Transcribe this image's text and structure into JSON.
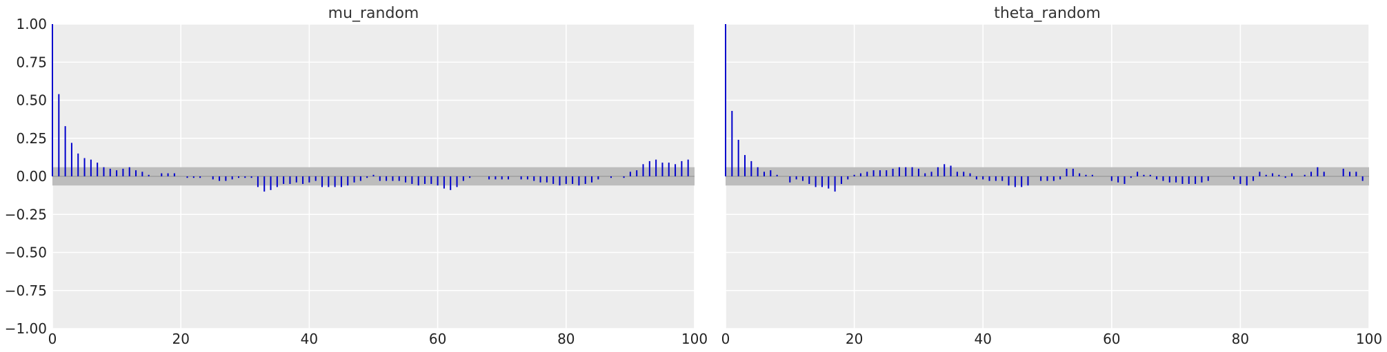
{
  "chart_data": [
    {
      "type": "bar",
      "subtype": "autocorrelation",
      "title": "mu_random",
      "xlabel": "",
      "ylabel": "",
      "xlim": [
        0,
        100
      ],
      "ylim": [
        -1.0,
        1.0
      ],
      "xticks": [
        "0",
        "20",
        "40",
        "60",
        "80",
        "100"
      ],
      "yticks": [
        "1.00",
        "0.75",
        "0.50",
        "0.25",
        "0.00",
        "−0.25",
        "−0.50",
        "−0.75",
        "−1.00"
      ],
      "grid": true,
      "confidence_band": [
        -0.06,
        0.06
      ],
      "bar_color": "#0000cc",
      "band_color": "#bdbdbd",
      "background_color": "#ededed",
      "x": [
        0,
        1,
        2,
        3,
        4,
        5,
        6,
        7,
        8,
        9,
        10,
        11,
        12,
        13,
        14,
        15,
        16,
        17,
        18,
        19,
        20,
        21,
        22,
        23,
        24,
        25,
        26,
        27,
        28,
        29,
        30,
        31,
        32,
        33,
        34,
        35,
        36,
        37,
        38,
        39,
        40,
        41,
        42,
        43,
        44,
        45,
        46,
        47,
        48,
        49,
        50,
        51,
        52,
        53,
        54,
        55,
        56,
        57,
        58,
        59,
        60,
        61,
        62,
        63,
        64,
        65,
        66,
        67,
        68,
        69,
        70,
        71,
        72,
        73,
        74,
        75,
        76,
        77,
        78,
        79,
        80,
        81,
        82,
        83,
        84,
        85,
        86,
        87,
        88,
        89,
        90,
        91,
        92,
        93,
        94,
        95,
        96,
        97,
        98,
        99
      ],
      "values": [
        1.0,
        0.54,
        0.33,
        0.22,
        0.15,
        0.12,
        0.11,
        0.09,
        0.06,
        0.05,
        0.04,
        0.05,
        0.06,
        0.04,
        0.03,
        0.01,
        0.0,
        0.02,
        0.02,
        0.02,
        0.0,
        -0.01,
        -0.01,
        -0.01,
        0.0,
        -0.02,
        -0.03,
        -0.03,
        -0.02,
        -0.01,
        -0.01,
        -0.01,
        -0.07,
        -0.1,
        -0.09,
        -0.07,
        -0.05,
        -0.05,
        -0.04,
        -0.05,
        -0.04,
        -0.03,
        -0.07,
        -0.07,
        -0.07,
        -0.07,
        -0.06,
        -0.04,
        -0.03,
        -0.01,
        0.01,
        -0.03,
        -0.03,
        -0.03,
        -0.03,
        -0.04,
        -0.05,
        -0.06,
        -0.05,
        -0.05,
        -0.06,
        -0.08,
        -0.09,
        -0.07,
        -0.03,
        -0.01,
        0.0,
        0.0,
        -0.02,
        -0.02,
        -0.02,
        -0.02,
        0.0,
        -0.02,
        -0.02,
        -0.03,
        -0.04,
        -0.04,
        -0.05,
        -0.06,
        -0.05,
        -0.05,
        -0.06,
        -0.05,
        -0.04,
        -0.02,
        0.0,
        -0.01,
        0.0,
        -0.01,
        0.03,
        0.04,
        0.08,
        0.1,
        0.11,
        0.09,
        0.09,
        0.08,
        0.1,
        0.11
      ]
    },
    {
      "type": "bar",
      "subtype": "autocorrelation",
      "title": "theta_random",
      "xlabel": "",
      "ylabel": "",
      "xlim": [
        0,
        100
      ],
      "ylim": [
        -1.0,
        1.0
      ],
      "xticks": [
        "0",
        "20",
        "40",
        "60",
        "80",
        "100"
      ],
      "yticks": [],
      "grid": true,
      "confidence_band": [
        -0.06,
        0.06
      ],
      "bar_color": "#0000cc",
      "band_color": "#bdbdbd",
      "background_color": "#ededed",
      "x": [
        0,
        1,
        2,
        3,
        4,
        5,
        6,
        7,
        8,
        9,
        10,
        11,
        12,
        13,
        14,
        15,
        16,
        17,
        18,
        19,
        20,
        21,
        22,
        23,
        24,
        25,
        26,
        27,
        28,
        29,
        30,
        31,
        32,
        33,
        34,
        35,
        36,
        37,
        38,
        39,
        40,
        41,
        42,
        43,
        44,
        45,
        46,
        47,
        48,
        49,
        50,
        51,
        52,
        53,
        54,
        55,
        56,
        57,
        58,
        59,
        60,
        61,
        62,
        63,
        64,
        65,
        66,
        67,
        68,
        69,
        70,
        71,
        72,
        73,
        74,
        75,
        76,
        77,
        78,
        79,
        80,
        81,
        82,
        83,
        84,
        85,
        86,
        87,
        88,
        89,
        90,
        91,
        92,
        93,
        94,
        95,
        96,
        97,
        98,
        99
      ],
      "values": [
        1.0,
        0.43,
        0.24,
        0.14,
        0.1,
        0.06,
        0.03,
        0.04,
        0.01,
        0.0,
        -0.04,
        -0.02,
        -0.03,
        -0.05,
        -0.07,
        -0.07,
        -0.08,
        -0.1,
        -0.05,
        -0.02,
        0.01,
        0.02,
        0.03,
        0.04,
        0.04,
        0.04,
        0.05,
        0.06,
        0.06,
        0.06,
        0.05,
        0.02,
        0.03,
        0.06,
        0.08,
        0.07,
        0.03,
        0.03,
        0.02,
        -0.02,
        -0.02,
        -0.03,
        -0.03,
        -0.03,
        -0.06,
        -0.07,
        -0.07,
        -0.06,
        0.0,
        -0.03,
        -0.03,
        -0.03,
        -0.02,
        0.05,
        0.05,
        0.02,
        0.01,
        0.01,
        0.0,
        0.0,
        -0.03,
        -0.04,
        -0.05,
        -0.01,
        0.03,
        0.01,
        0.01,
        -0.02,
        -0.03,
        -0.04,
        -0.04,
        -0.05,
        -0.05,
        -0.05,
        -0.04,
        -0.03,
        0.0,
        0.0,
        0.0,
        -0.02,
        -0.05,
        -0.06,
        -0.03,
        0.03,
        0.01,
        0.02,
        0.01,
        -0.01,
        0.02,
        0.0,
        0.01,
        0.03,
        0.06,
        0.03,
        0.0,
        0.0,
        0.05,
        0.03,
        0.03,
        -0.03
      ]
    }
  ]
}
